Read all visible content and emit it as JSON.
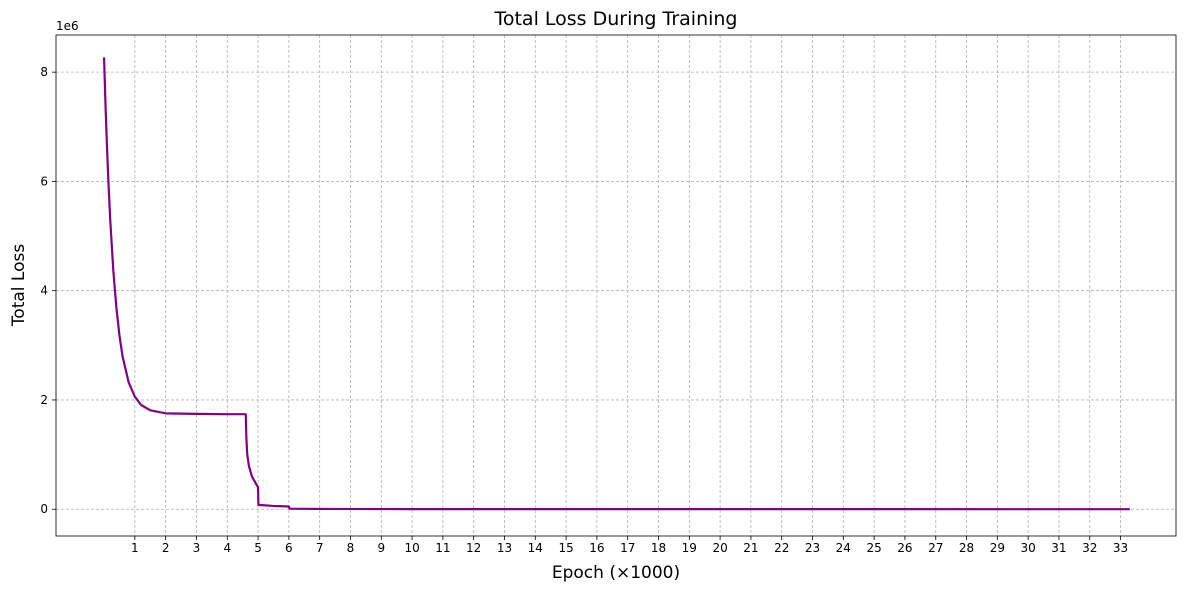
{
  "chart_data": {
    "type": "line",
    "title": "Total Loss During Training",
    "x_label": "Epoch (×1000)",
    "y_label": "Total Loss",
    "y_offset_label": "1e6",
    "x": [
      0,
      0.05,
      0.1,
      0.15,
      0.2,
      0.3,
      0.4,
      0.5,
      0.6,
      0.8,
      1.0,
      1.2,
      1.5,
      2.0,
      3.0,
      4.0,
      4.6,
      4.62,
      4.65,
      4.7,
      4.8,
      4.9,
      5.0,
      5.01,
      5.5,
      6.0,
      6.02,
      7,
      10,
      33.3
    ],
    "series": [
      {
        "name": "Total Loss",
        "color": "#800080",
        "values": [
          8.27,
          7.35,
          6.56,
          5.89,
          5.3,
          4.37,
          3.69,
          3.18,
          2.8,
          2.32,
          2.06,
          1.91,
          1.81,
          1.755,
          1.745,
          1.74,
          1.74,
          1.3,
          1.0,
          0.8,
          0.6,
          0.5,
          0.4,
          0.08,
          0.06,
          0.05,
          0.01,
          0.005,
          0.002,
          0.001
        ]
      }
    ],
    "xlim": [
      -1.56,
      34.8
    ],
    "ylim": [
      -0.49,
      8.68
    ],
    "xticks": [
      1,
      2,
      3,
      4,
      5,
      6,
      7,
      8,
      9,
      10,
      11,
      12,
      13,
      14,
      15,
      16,
      17,
      18,
      19,
      20,
      21,
      22,
      23,
      24,
      25,
      26,
      27,
      28,
      29,
      30,
      31,
      32,
      33
    ],
    "yticks": [
      0,
      2,
      4,
      6,
      8
    ],
    "grid": true
  }
}
